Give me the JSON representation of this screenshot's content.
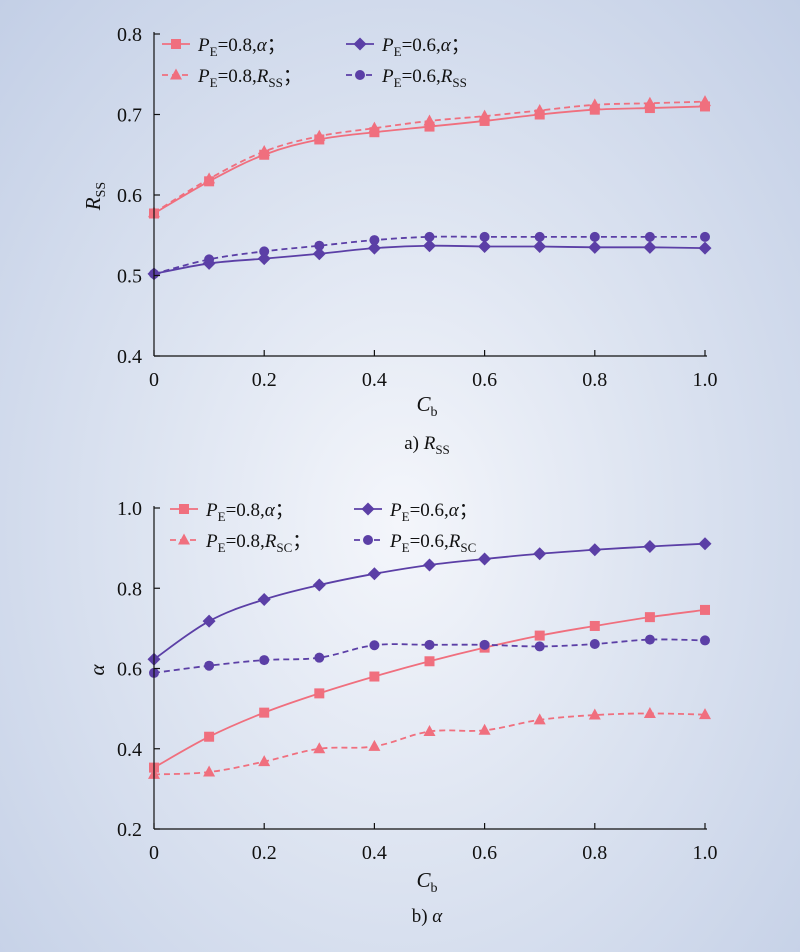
{
  "colors": {
    "pink": "#f06f7e",
    "purple": "#5b3fa6",
    "axis": "#111111"
  },
  "figure": {
    "panels": [
      {
        "caption_prefix": "a) ",
        "caption_var": "R",
        "caption_sub": "SS",
        "xlabel_var": "C",
        "xlabel_sub": "b",
        "ylabel_var": "R",
        "ylabel_sub": "SS"
      },
      {
        "caption_prefix": "b) ",
        "caption_var": "α",
        "caption_sub": "",
        "xlabel_var": "C",
        "xlabel_sub": "b",
        "ylabel_var": "α",
        "ylabel_sub": ""
      }
    ]
  },
  "chart_data": [
    {
      "type": "line",
      "xlabel": "Cb",
      "ylabel": "RSS",
      "caption": "a) RSS",
      "xlim": [
        0,
        1.0
      ],
      "ylim": [
        0.4,
        0.8
      ],
      "xticks": [
        "0",
        "0.2",
        "0.4",
        "0.6",
        "0.8",
        "1.0"
      ],
      "yticks": [
        "0.4",
        "0.5",
        "0.6",
        "0.7",
        "0.8"
      ],
      "legend_position": "top-left",
      "x": [
        0,
        0.1,
        0.2,
        0.3,
        0.4,
        0.5,
        0.6,
        0.7,
        0.8,
        0.9,
        1.0
      ],
      "series": [
        {
          "name": "PE=0.8,α;",
          "legend_pre": "=0.8,",
          "legend_var": "α",
          "legend_sub": "",
          "legend_post": "；",
          "color": "pink",
          "marker": "square",
          "dash": false,
          "values": [
            0.577,
            0.617,
            0.65,
            0.669,
            0.678,
            0.685,
            0.692,
            0.7,
            0.706,
            0.708,
            0.71
          ]
        },
        {
          "name": "PE=0.6,α;",
          "legend_pre": "=0.6,",
          "legend_var": "α",
          "legend_sub": "",
          "legend_post": "；",
          "color": "purple",
          "marker": "diamond",
          "dash": false,
          "values": [
            0.502,
            0.515,
            0.521,
            0.527,
            0.534,
            0.537,
            0.536,
            0.536,
            0.535,
            0.535,
            0.534
          ]
        },
        {
          "name": "PE=0.8,RSS;",
          "legend_pre": "=0.8,",
          "legend_var": "R",
          "legend_sub": "SS",
          "legend_post": "；",
          "color": "pink",
          "marker": "triangle",
          "dash": true,
          "values": [
            0.578,
            0.62,
            0.654,
            0.673,
            0.683,
            0.692,
            0.698,
            0.705,
            0.712,
            0.714,
            0.716
          ]
        },
        {
          "name": "PE=0.6,RSS",
          "legend_pre": "=0.6,",
          "legend_var": "R",
          "legend_sub": "SS",
          "legend_post": "",
          "color": "purple",
          "marker": "circle",
          "dash": true,
          "values": [
            0.502,
            0.52,
            0.53,
            0.537,
            0.544,
            0.548,
            0.548,
            0.548,
            0.548,
            0.548,
            0.548
          ]
        }
      ]
    },
    {
      "type": "line",
      "xlabel": "Cb",
      "ylabel": "α",
      "caption": "b) α",
      "xlim": [
        0,
        1.0
      ],
      "ylim": [
        0.2,
        1.0
      ],
      "xticks": [
        "0",
        "0.2",
        "0.4",
        "0.6",
        "0.8",
        "1.0"
      ],
      "yticks": [
        "0.2",
        "0.4",
        "0.6",
        "0.8",
        "1.0"
      ],
      "legend_position": "top-left",
      "x": [
        0,
        0.1,
        0.2,
        0.3,
        0.4,
        0.5,
        0.6,
        0.7,
        0.8,
        0.9,
        1.0
      ],
      "series": [
        {
          "name": "PE=0.8,α;",
          "legend_pre": "=0.8,",
          "legend_var": "α",
          "legend_sub": "",
          "legend_post": "；",
          "color": "pink",
          "marker": "square",
          "dash": false,
          "values": [
            0.353,
            0.43,
            0.49,
            0.538,
            0.58,
            0.618,
            0.652,
            0.682,
            0.706,
            0.728,
            0.746
          ]
        },
        {
          "name": "PE=0.6,α;",
          "legend_pre": "=0.6,",
          "legend_var": "α",
          "legend_sub": "",
          "legend_post": "；",
          "color": "purple",
          "marker": "diamond",
          "dash": false,
          "values": [
            0.623,
            0.718,
            0.772,
            0.808,
            0.836,
            0.858,
            0.873,
            0.886,
            0.896,
            0.904,
            0.911
          ]
        },
        {
          "name": "PE=0.8,RSC;",
          "legend_pre": "=0.8,",
          "legend_var": "R",
          "legend_sub": "SC",
          "legend_post": "；",
          "color": "pink",
          "marker": "triangle",
          "dash": true,
          "values": [
            0.336,
            0.342,
            0.368,
            0.4,
            0.406,
            0.443,
            0.446,
            0.472,
            0.484,
            0.488,
            0.485
          ]
        },
        {
          "name": "PE=0.6,RSC",
          "legend_pre": "=0.6,",
          "legend_var": "R",
          "legend_sub": "SC",
          "legend_post": "",
          "color": "purple",
          "marker": "circle",
          "dash": true,
          "values": [
            0.589,
            0.607,
            0.621,
            0.627,
            0.658,
            0.659,
            0.659,
            0.655,
            0.661,
            0.672,
            0.67
          ]
        }
      ]
    }
  ]
}
